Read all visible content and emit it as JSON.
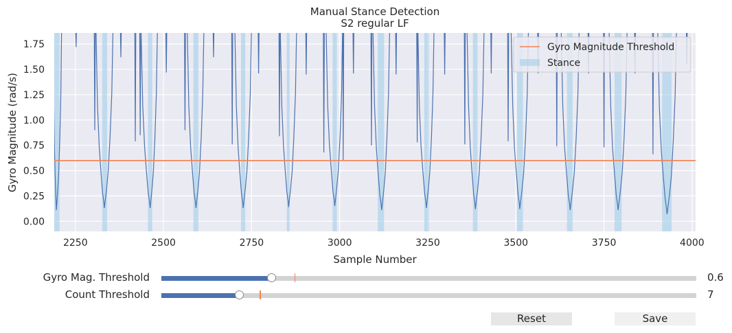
{
  "chart_data": {
    "type": "line",
    "title": "Manual Stance Detection",
    "subtitle": "S2  regular  LF",
    "xlabel": "Sample Number",
    "ylabel": "Gyro Magnitude (rad/s)",
    "xlim": [
      2190,
      4010
    ],
    "ylim": [
      -0.1,
      1.86
    ],
    "xticks": [
      2250,
      2500,
      2750,
      3000,
      3250,
      3500,
      3750,
      4000
    ],
    "yticks": [
      0.0,
      0.25,
      0.5,
      0.75,
      1.0,
      1.25,
      1.5,
      1.75
    ],
    "xtick_labels": [
      "2250",
      "2500",
      "2750",
      "3000",
      "3250",
      "3500",
      "3750",
      "4000"
    ],
    "ytick_labels": [
      "0.00",
      "0.25",
      "0.50",
      "0.75",
      "1.00",
      "1.25",
      "1.50",
      "1.75"
    ],
    "grid": true,
    "legend_position": "top-right",
    "threshold": {
      "name": "Gyro Magnitude Threshold",
      "value": 0.6,
      "color": "#f4824f"
    },
    "stance": {
      "name": "Stance",
      "color": "#a1cfe9",
      "intervals": [
        [
          2190,
          2205
        ],
        [
          2326,
          2340
        ],
        [
          2456,
          2468
        ],
        [
          2585,
          2599
        ],
        [
          2720,
          2732
        ],
        [
          2850,
          2858
        ],
        [
          2980,
          2992
        ],
        [
          3108,
          3126
        ],
        [
          3240,
          3253
        ],
        [
          3378,
          3391
        ],
        [
          3503,
          3520
        ],
        [
          3645,
          3661
        ],
        [
          3780,
          3800
        ],
        [
          3915,
          3942
        ]
      ]
    },
    "series": [
      {
        "name": "",
        "color": "#4c72b0",
        "troughs": [
          {
            "x": 2196,
            "y": 0.11,
            "left": 2187,
            "right": 2211
          },
          {
            "x": 2332,
            "y": 0.13,
            "left": 2308,
            "right": 2357
          },
          {
            "x": 2462,
            "y": 0.13,
            "left": 2436,
            "right": 2483
          },
          {
            "x": 2592,
            "y": 0.13,
            "left": 2567,
            "right": 2615
          },
          {
            "x": 2726,
            "y": 0.13,
            "left": 2702,
            "right": 2750
          },
          {
            "x": 2855,
            "y": 0.14,
            "left": 2831,
            "right": 2878
          },
          {
            "x": 2986,
            "y": 0.15,
            "left": 2961,
            "right": 3009
          },
          {
            "x": 3119,
            "y": 0.11,
            "left": 3094,
            "right": 3142
          },
          {
            "x": 3246,
            "y": 0.13,
            "left": 3221,
            "right": 3268
          },
          {
            "x": 3385,
            "y": 0.12,
            "left": 3361,
            "right": 3410
          },
          {
            "x": 3511,
            "y": 0.12,
            "left": 3486,
            "right": 3536
          },
          {
            "x": 3654,
            "y": 0.11,
            "left": 3628,
            "right": 3680
          },
          {
            "x": 3790,
            "y": 0.11,
            "left": 3764,
            "right": 3816
          },
          {
            "x": 3929,
            "y": 0.07,
            "left": 3902,
            "right": 3956
          }
        ],
        "spikes": [
          {
            "x": 2252,
            "y": 1.72
          },
          {
            "x": 2305,
            "y": 0.9
          },
          {
            "x": 2379,
            "y": 1.62
          },
          {
            "x": 2420,
            "y": 0.79
          },
          {
            "x": 2434,
            "y": 0.85
          },
          {
            "x": 2508,
            "y": 1.47
          },
          {
            "x": 2561,
            "y": 0.9
          },
          {
            "x": 2642,
            "y": 1.62
          },
          {
            "x": 2695,
            "y": 0.76
          },
          {
            "x": 2770,
            "y": 1.46
          },
          {
            "x": 2829,
            "y": 0.84
          },
          {
            "x": 2905,
            "y": 1.45
          },
          {
            "x": 2955,
            "y": 0.68
          },
          {
            "x": 3010,
            "y": 0.6
          },
          {
            "x": 3039,
            "y": 1.46
          },
          {
            "x": 3090,
            "y": 0.75
          },
          {
            "x": 3160,
            "y": 1.45
          },
          {
            "x": 3220,
            "y": 0.78
          },
          {
            "x": 3298,
            "y": 1.45
          },
          {
            "x": 3355,
            "y": 0.76
          },
          {
            "x": 3430,
            "y": 1.46
          },
          {
            "x": 3478,
            "y": 0.79
          },
          {
            "x": 3563,
            "y": 1.46
          },
          {
            "x": 3616,
            "y": 0.74
          },
          {
            "x": 3706,
            "y": 1.46
          },
          {
            "x": 3750,
            "y": 0.73
          },
          {
            "x": 3838,
            "y": 1.46
          },
          {
            "x": 3889,
            "y": 0.66
          },
          {
            "x": 3985,
            "y": 1.55
          }
        ]
      }
    ]
  },
  "controls": {
    "gyro_threshold": {
      "label": "Gyro Mag. Threshold",
      "value_text": "0.6",
      "fraction": 0.207,
      "initial_fraction": 0.249
    },
    "count_threshold": {
      "label": "Count Threshold",
      "value_text": "7",
      "fraction": 0.146,
      "initial_fraction": 0.184
    },
    "reset_label": "Reset",
    "save_label": "Save"
  },
  "colors": {
    "slider_fill": "#4c72b0",
    "slider_track": "#d3d3d3",
    "slider_marker": "#f4824f",
    "plot_background": "#eaeaf2",
    "reset_button": "#e6e6e6",
    "save_button": "#f0f0f0"
  }
}
